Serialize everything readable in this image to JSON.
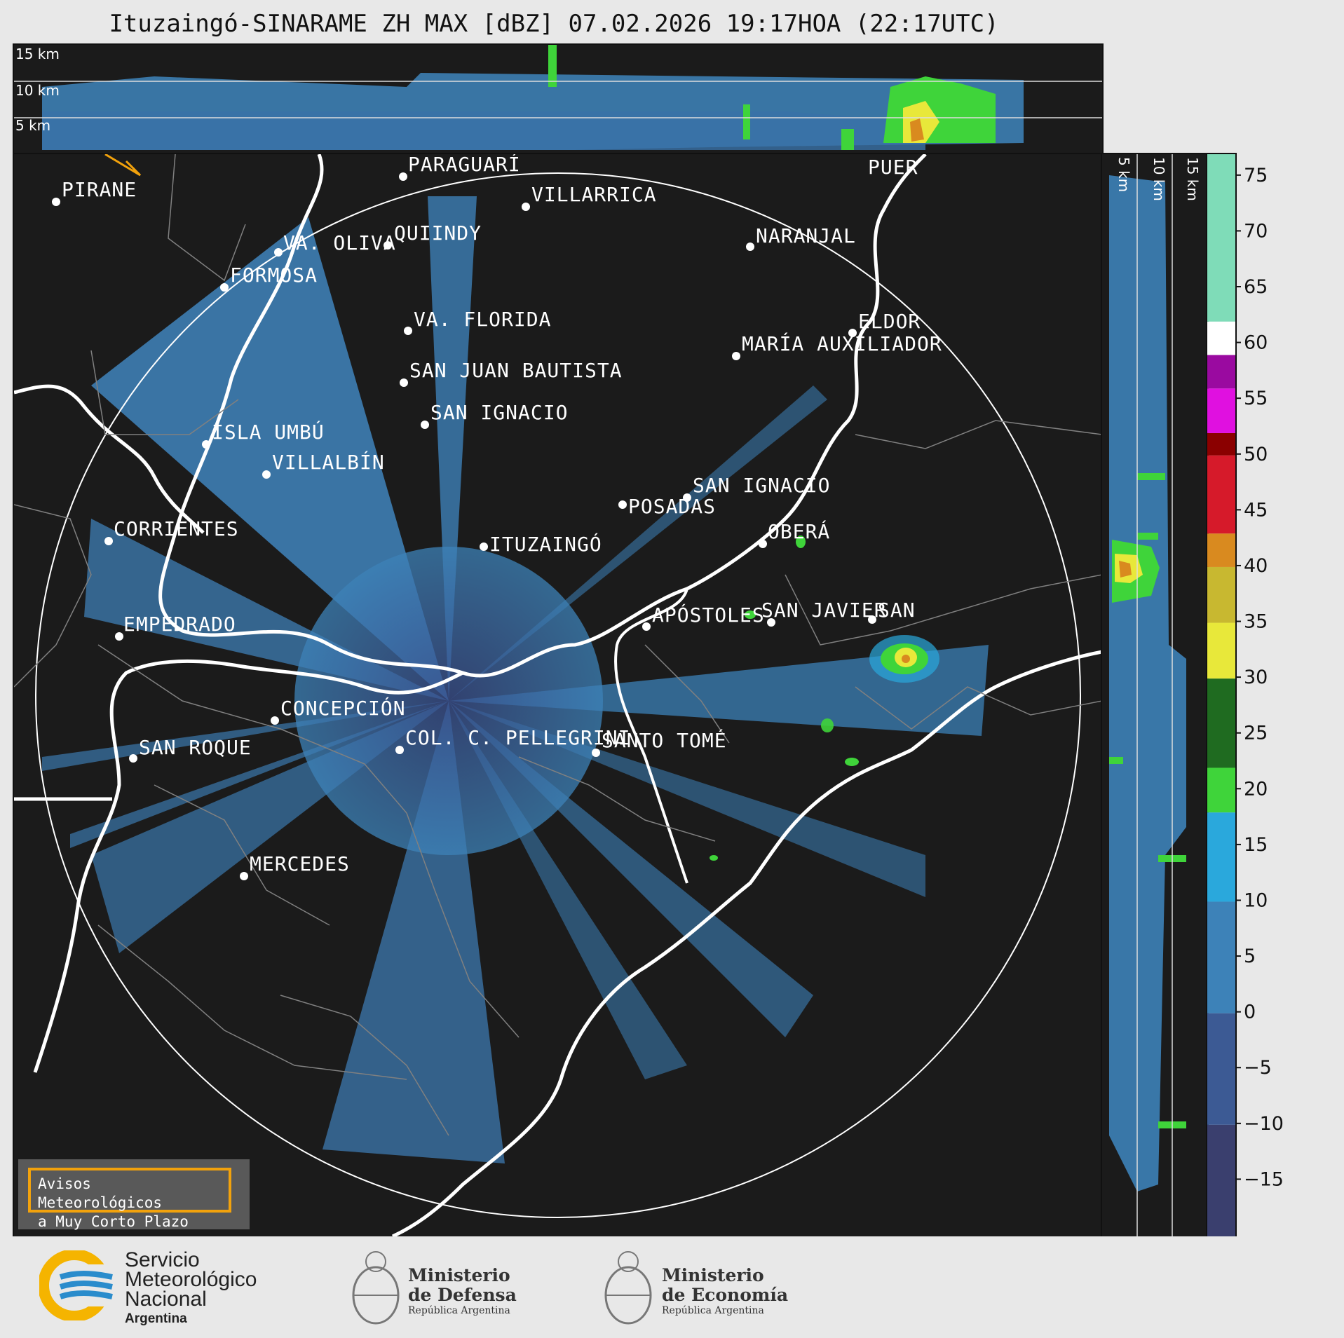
{
  "title": "Ituzaingó-SINARAME ZH MAX [dBZ] 07.02.2026 19:17HOA (22:17UTC)",
  "top_panel": {
    "altitude_labels": [
      "15 km",
      "10 km",
      "5 km"
    ]
  },
  "side_panel": {
    "altitude_labels": [
      "5 km",
      "10 km",
      "15 km"
    ]
  },
  "colorbar": {
    "unit": "dBZ",
    "ticks": [
      "75",
      "70",
      "65",
      "60",
      "55",
      "50",
      "45",
      "40",
      "35",
      "30",
      "25",
      "20",
      "15",
      "10",
      "5",
      "0",
      "−5",
      "−10",
      "−15"
    ],
    "range": [
      -20,
      77
    ],
    "colors": {
      "low": "#3a3f6e",
      "mid_blue": "#3d82b8",
      "cyan": "#2aa8dc",
      "green": "#3fd43a",
      "dark_green": "#1f6b20",
      "yellow": "#e8e83a",
      "orange": "#d98a1f",
      "red": "#d61a2a",
      "dark_red": "#8b0000",
      "magenta": "#e010e0",
      "purple": "#9a0aa0",
      "white": "#ffffff",
      "mint": "#7fdcb8"
    }
  },
  "cities": [
    {
      "name": "PIRANE"
    },
    {
      "name": "PARAGUARÍ"
    },
    {
      "name": "VILLARRICA"
    },
    {
      "name": "VA. OLIVA"
    },
    {
      "name": "QUIINDY"
    },
    {
      "name": "FORMOSA"
    },
    {
      "name": "NARANJAL"
    },
    {
      "name": "VA. FLORIDA"
    },
    {
      "name": "ELDOR"
    },
    {
      "name": "MARÍA AUXILIADOR"
    },
    {
      "name": "SAN JUAN BAUTISTA"
    },
    {
      "name": "SAN IGNACIO"
    },
    {
      "name": "ISLA UMBÚ"
    },
    {
      "name": "VILLALBÍN"
    },
    {
      "name": "SAN IGNACIO"
    },
    {
      "name": "POSADAS"
    },
    {
      "name": "CORRIENTES"
    },
    {
      "name": "OBERÁ"
    },
    {
      "name": "ITUZAINGÓ"
    },
    {
      "name": "EMPEDRADO"
    },
    {
      "name": "APÓSTOLES"
    },
    {
      "name": "SAN JAVIER"
    },
    {
      "name": "SAN"
    },
    {
      "name": "CONCEPCIÓN"
    },
    {
      "name": "COL. C. PELLEGRINI"
    },
    {
      "name": "SAN ROQUE"
    },
    {
      "name": "SANTO TOMÉ"
    },
    {
      "name": "MERCEDES"
    },
    {
      "name": "PUER"
    }
  ],
  "warning": {
    "line1": "Avisos Meteorológicos",
    "line2": "a Muy Corto Plazo"
  },
  "footer": {
    "smn": {
      "line1": "Servicio",
      "line2": "Meteorológico",
      "line3": "Nacional",
      "line4": "Argentina"
    },
    "defensa": {
      "line1": "Ministerio",
      "line2": "de Defensa",
      "line3": "República Argentina"
    },
    "economia": {
      "line1": "Ministerio",
      "line2": "de Economía",
      "line3": "República Argentina"
    }
  }
}
